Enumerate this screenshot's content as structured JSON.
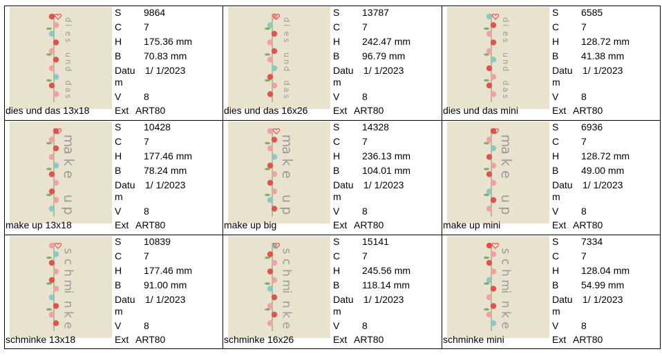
{
  "labels": {
    "s": "S",
    "c": "C",
    "h": "H",
    "b": "B",
    "datum": "Datu",
    "datum_cont": "m",
    "v": "V",
    "ext": "Ext"
  },
  "cells": [
    {
      "caption": "dies und das 13x18",
      "s": "9864",
      "c": "7",
      "h": "175.36 mm",
      "b": "70.83 mm",
      "datum": "1/ 1/2023",
      "v": "8",
      "ext": "ART80",
      "thumb_text": "dies und das"
    },
    {
      "caption": "dies und das 16x26",
      "s": "13787",
      "c": "7",
      "h": "242.47 mm",
      "b": "96.79 mm",
      "datum": "1/ 1/2023",
      "v": "8",
      "ext": "ART80",
      "thumb_text": "dies und das"
    },
    {
      "caption": "dies und das mini",
      "s": "6585",
      "c": "7",
      "h": "128.72 mm",
      "b": "41.38 mm",
      "datum": "1/ 1/2023",
      "v": "8",
      "ext": "ART80",
      "thumb_text": "dies und das"
    },
    {
      "caption": "make up 13x18",
      "s": "10428",
      "c": "7",
      "h": "177.46 mm",
      "b": "78.24 mm",
      "datum": "1/ 1/2023",
      "v": "8",
      "ext": "ART80",
      "thumb_text": "make up"
    },
    {
      "caption": "make up big",
      "s": "14328",
      "c": "7",
      "h": "236.13 mm",
      "b": "104.01 mm",
      "datum": "1/ 1/2023",
      "v": "8",
      "ext": "ART80",
      "thumb_text": "make up"
    },
    {
      "caption": "make up mini",
      "s": "6936",
      "c": "7",
      "h": "128.72 mm",
      "b": "49.00 mm",
      "datum": "1/ 1/2023",
      "v": "8",
      "ext": "ART80",
      "thumb_text": "make up"
    },
    {
      "caption": "schminke 13x18",
      "s": "10839",
      "c": "7",
      "h": "177.46 mm",
      "b": "91.00 mm",
      "datum": "1/ 1/2023",
      "v": "8",
      "ext": "ART80",
      "thumb_text": "schminke"
    },
    {
      "caption": "schminke 16x26",
      "s": "15141",
      "c": "7",
      "h": "245.56 mm",
      "b": "118.14 mm",
      "datum": "1/ 1/2023",
      "v": "8",
      "ext": "ART80",
      "thumb_text": "schminke"
    },
    {
      "caption": "schminke mini",
      "s": "7334",
      "c": "7",
      "h": "128.04 mm",
      "b": "54.99 mm",
      "datum": "1/ 1/2023",
      "v": "8",
      "ext": "ART80",
      "thumb_text": "schminke"
    }
  ],
  "colors": {
    "fabric": "#e8e2cf",
    "thread_gray": "#9a9a9a",
    "flower_red": "#e0524e",
    "flower_pink": "#f2a0a8",
    "leaf_green": "#7fae6a",
    "flower_teal": "#8fc6c4"
  }
}
